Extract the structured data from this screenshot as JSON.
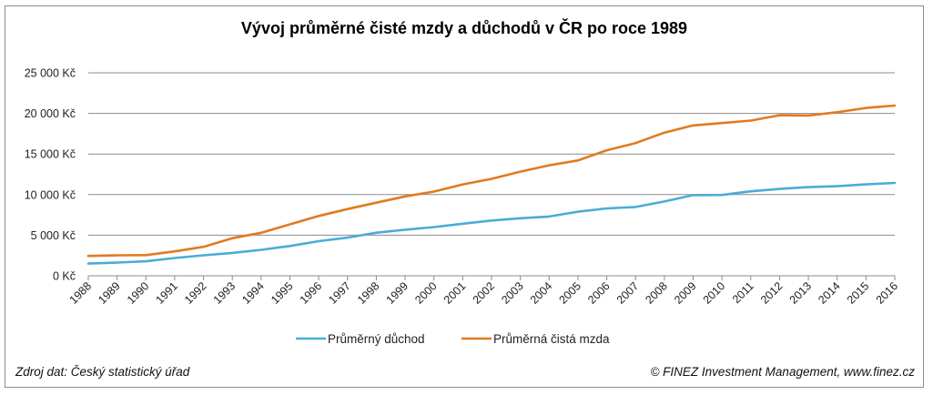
{
  "footer": {
    "source": "Zdroj dat: Český statistický úřad",
    "copyright": "© FINEZ Investment Management, www.finez.cz"
  },
  "chart_data": {
    "type": "line",
    "title": "Vývoj průměrné čisté mzdy a důchodů v ČR po roce 1989",
    "xlabel": "",
    "ylabel": "",
    "ylim": [
      0,
      25000
    ],
    "yticks": [
      0,
      5000,
      10000,
      15000,
      20000,
      25000
    ],
    "ytick_labels": [
      "0 Kč",
      "5 000 Kč",
      "10 000 Kč",
      "15 000 Kč",
      "20 000 Kč",
      "25 000 Kč"
    ],
    "grid": "horizontal",
    "legend_position": "bottom",
    "categories": [
      "1988",
      "1989",
      "1990",
      "1991",
      "1992",
      "1993",
      "1994",
      "1995",
      "1996",
      "1997",
      "1998",
      "1999",
      "2000",
      "2001",
      "2002",
      "2003",
      "2004",
      "2005",
      "2006",
      "2007",
      "2008",
      "2009",
      "2010",
      "2011",
      "2012",
      "2013",
      "2014",
      "2015",
      "2016"
    ],
    "series": [
      {
        "name": "Průměrný důchod",
        "color": "#4bacd6",
        "values": [
          1500,
          1620,
          1780,
          2190,
          2520,
          2810,
          3190,
          3670,
          4260,
          4700,
          5300,
          5670,
          6000,
          6410,
          6800,
          7080,
          7300,
          7890,
          8300,
          8480,
          9150,
          9930,
          9950,
          10400,
          10700,
          10920,
          11030,
          11260,
          11440
        ]
      },
      {
        "name": "Průměrná čistá mzda",
        "color": "#e07b1f",
        "values": [
          2440,
          2520,
          2550,
          3000,
          3560,
          4630,
          5290,
          6330,
          7370,
          8220,
          9000,
          9780,
          10370,
          11260,
          11940,
          12830,
          13610,
          14200,
          15460,
          16350,
          17630,
          18520,
          18810,
          19110,
          19780,
          19740,
          20150,
          20670,
          20960
        ]
      }
    ]
  }
}
